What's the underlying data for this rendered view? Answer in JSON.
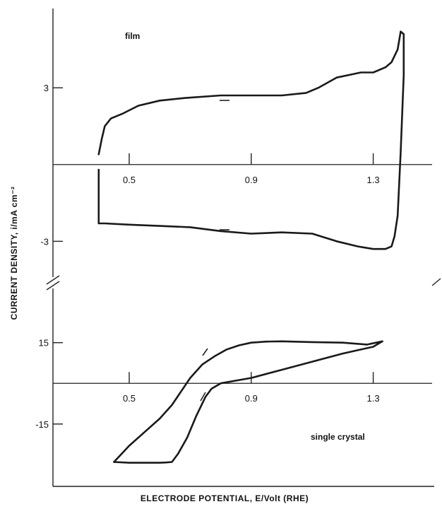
{
  "figure": {
    "y_axis_title": "CURRENT  DENSITY,  i/mA cm⁻²",
    "x_axis_title": "ELECTRODE   POTENTIAL,  E/Volt  (RHE)"
  },
  "chart_data": [
    {
      "type": "line",
      "panel": "film",
      "annotation": "film",
      "xlabel": "ELECTRODE POTENTIAL, E/Volt (RHE)",
      "ylabel": "CURRENT DENSITY, i/mA cm⁻²",
      "xlim": [
        0.25,
        1.5
      ],
      "ylim": [
        -4.4,
        6.1
      ],
      "x_ticks": [
        0.5,
        0.9,
        1.3
      ],
      "x_tick_labels": [
        "0.5",
        "0.9",
        "1.3"
      ],
      "y_ticks": [
        3,
        -3
      ],
      "y_tick_labels": [
        "3",
        "-3"
      ],
      "grid": false,
      "series": [
        {
          "x": [
            0.4,
            0.41,
            0.42,
            0.44,
            0.48,
            0.53,
            0.6,
            0.68,
            0.8,
            0.9,
            1.0,
            1.08,
            1.12,
            1.15,
            1.18,
            1.22,
            1.26,
            1.3,
            1.34,
            1.36,
            1.38,
            1.39,
            1.4,
            1.4,
            1.39,
            1.38,
            1.37,
            1.36,
            1.34,
            1.3,
            1.25,
            1.18,
            1.1,
            1.0,
            0.9,
            0.8,
            0.7,
            0.6,
            0.5,
            0.42,
            0.4,
            0.4
          ],
          "y": [
            0.4,
            1.0,
            1.5,
            1.8,
            2.0,
            2.3,
            2.5,
            2.6,
            2.7,
            2.7,
            2.7,
            2.8,
            3.0,
            3.2,
            3.4,
            3.5,
            3.6,
            3.6,
            3.8,
            4.0,
            4.5,
            5.2,
            5.1,
            3.5,
            0.5,
            -2.0,
            -2.8,
            -3.2,
            -3.3,
            -3.3,
            -3.2,
            -3.0,
            -2.7,
            -2.65,
            -2.7,
            -2.6,
            -2.45,
            -2.4,
            -2.35,
            -2.3,
            -2.3,
            -0.2
          ]
        }
      ]
    },
    {
      "type": "line",
      "panel": "single crystal",
      "annotation": "single crystal",
      "xlabel": "ELECTRODE POTENTIAL, E/Volt (RHE)",
      "ylabel": "CURRENT DENSITY, i/mA cm⁻²",
      "xlim": [
        0.25,
        1.5
      ],
      "ylim": [
        -38,
        35
      ],
      "x_ticks": [
        0.5,
        0.9,
        1.3
      ],
      "x_tick_labels": [
        "0.5",
        "0.9",
        "1.3"
      ],
      "y_ticks": [
        15,
        -15
      ],
      "y_tick_labels": [
        "15",
        "-15"
      ],
      "grid": false,
      "series": [
        {
          "x": [
            0.45,
            0.5,
            0.55,
            0.6,
            0.64,
            0.67,
            0.7,
            0.74,
            0.78,
            0.82,
            0.86,
            0.9,
            0.95,
            1.0,
            1.1,
            1.2,
            1.28,
            1.33,
            1.3,
            1.2,
            1.1,
            1.0,
            0.9,
            0.85,
            0.8,
            0.77,
            0.75,
            0.72,
            0.69,
            0.66,
            0.64,
            0.62,
            0.6,
            0.5,
            0.45
          ],
          "y": [
            -29,
            -23,
            -18,
            -13,
            -8,
            -3,
            2,
            7,
            10,
            12.5,
            14,
            15,
            15.4,
            15.5,
            15.2,
            15,
            14.3,
            15.5,
            13.5,
            11,
            8,
            5,
            2,
            1,
            0,
            -2,
            -5,
            -12,
            -20,
            -26,
            -29,
            -29.2,
            -29.3,
            -29.3,
            -29
          ]
        }
      ]
    }
  ]
}
